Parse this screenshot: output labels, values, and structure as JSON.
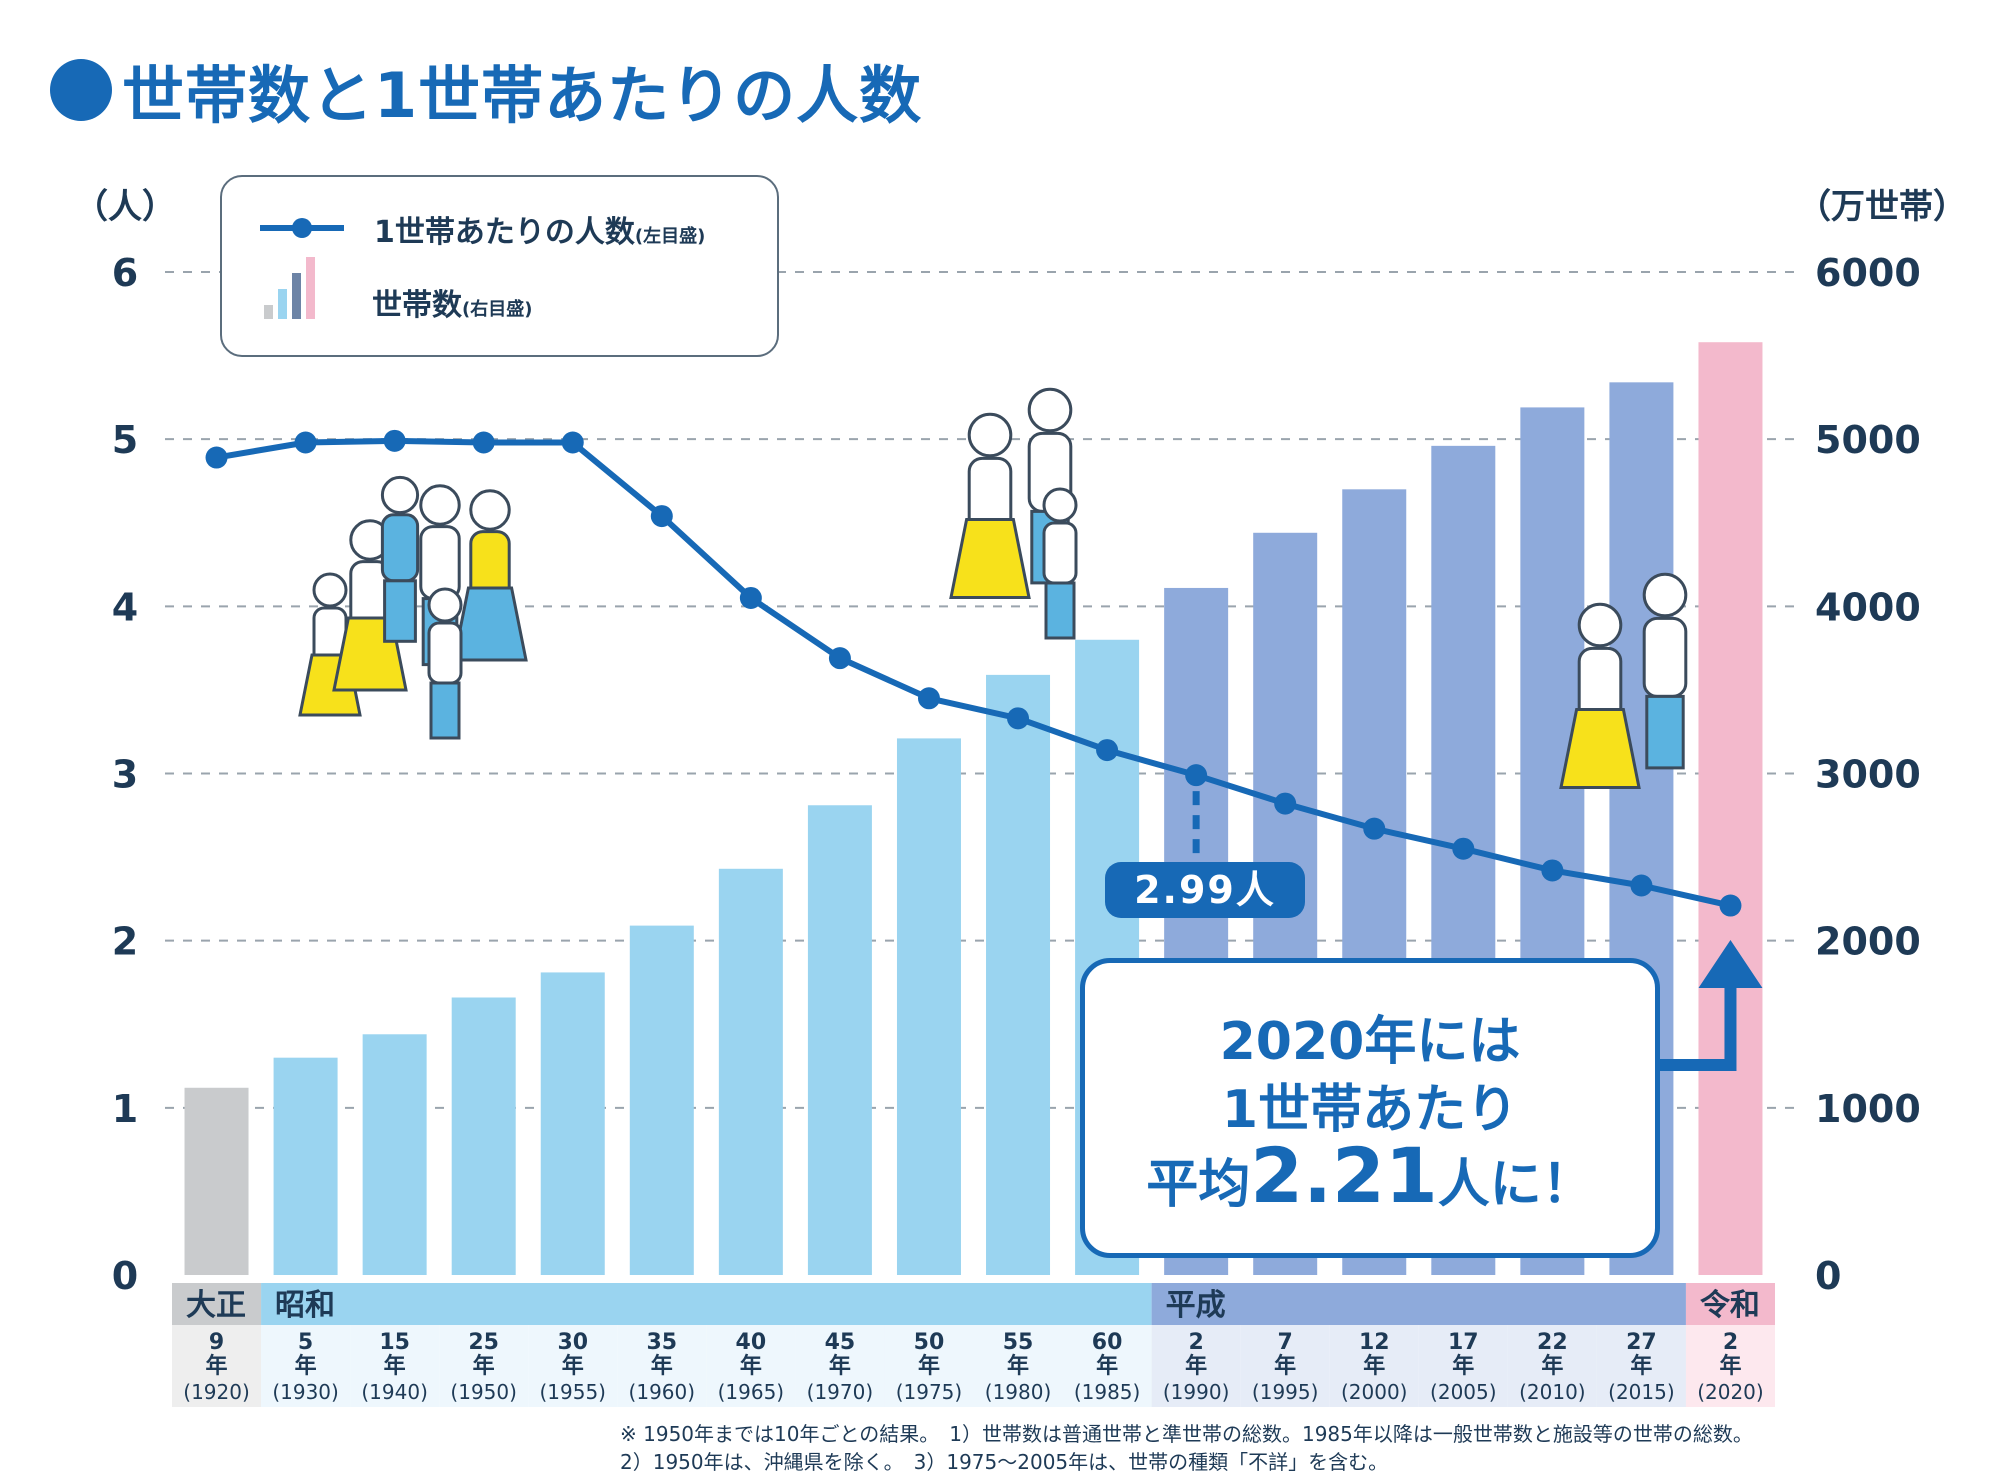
{
  "page": {
    "title": "世帯数と1世帯あたりの人数"
  },
  "legend": {
    "line_label": "1世帯あたりの人数",
    "line_note": "(左目盛)",
    "bar_label": "世帯数",
    "bar_note": "(右目盛)"
  },
  "axes": {
    "left_unit": "（人）",
    "right_unit": "（万世帯）"
  },
  "eras": [
    {
      "name": "大正",
      "from": 0,
      "to": 0,
      "color": "#c9cbcd"
    },
    {
      "name": "昭和",
      "from": 1,
      "to": 10,
      "color": "#9ad4f0"
    },
    {
      "name": "平成",
      "from": 11,
      "to": 16,
      "color": "#8eaadb"
    },
    {
      "name": "令和",
      "from": 17,
      "to": 17,
      "color": "#f3b9cc"
    }
  ],
  "callouts": {
    "small": "2.99人",
    "big_line1": "2020年には",
    "big_line2": "1世帯あたり",
    "big_line3_pre": "平均",
    "big_line3_num": "2.21",
    "big_line3_post": "人に！"
  },
  "notes": {
    "line1": "※ 1950年までは10年ごとの結果。　1）世帯数は普通世帯と準世帯の総数。1985年以降は一般世帯数と施設等の世帯の総数。",
    "line2": "2）1950年は、沖縄県を除く。　3）1975〜2005年は、世帯の種類「不詳」を含む。"
  },
  "colors": {
    "accent": "#1769b6",
    "taisho": "#c9cbcd",
    "showa": "#9ad4f0",
    "heisei": "#8eaadb",
    "reiwa": "#f3b9cc",
    "yellow": "#f7e11b"
  },
  "chart_data": {
    "type": "bar+line",
    "categories": [
      {
        "era_year": "9",
        "western": "(1920)"
      },
      {
        "era_year": "5",
        "western": "(1930)"
      },
      {
        "era_year": "15",
        "western": "(1940)"
      },
      {
        "era_year": "25",
        "western": "(1950)"
      },
      {
        "era_year": "30",
        "western": "(1955)"
      },
      {
        "era_year": "35",
        "western": "(1960)"
      },
      {
        "era_year": "40",
        "western": "(1965)"
      },
      {
        "era_year": "45",
        "western": "(1970)"
      },
      {
        "era_year": "50",
        "western": "(1975)"
      },
      {
        "era_year": "55",
        "western": "(1980)"
      },
      {
        "era_year": "60",
        "western": "(1985)"
      },
      {
        "era_year": "2",
        "western": "(1990)"
      },
      {
        "era_year": "7",
        "western": "(1995)"
      },
      {
        "era_year": "12",
        "western": "(2000)"
      },
      {
        "era_year": "17",
        "western": "(2005)"
      },
      {
        "era_year": "22",
        "western": "(2010)"
      },
      {
        "era_year": "27",
        "western": "(2015)"
      },
      {
        "era_year": "2",
        "western": "(2020)"
      }
    ],
    "year_suffix": "年",
    "series": [
      {
        "name": "世帯数",
        "kind": "bar",
        "axis": "right",
        "values": [
          1120,
          1300,
          1440,
          1660,
          1810,
          2090,
          2430,
          2810,
          3210,
          3590,
          3800,
          4110,
          4440,
          4700,
          4960,
          5190,
          5340,
          5580
        ]
      },
      {
        "name": "1世帯あたりの人数",
        "kind": "line",
        "axis": "left",
        "values": [
          4.89,
          4.98,
          4.99,
          4.98,
          4.98,
          4.54,
          4.05,
          3.69,
          3.45,
          3.33,
          3.14,
          2.99,
          2.82,
          2.67,
          2.55,
          2.42,
          2.33,
          2.21
        ]
      }
    ],
    "left_axis": {
      "ylim": [
        0,
        6
      ],
      "ticks": [
        "0",
        "1",
        "2",
        "3",
        "4",
        "5",
        "6"
      ]
    },
    "right_axis": {
      "ylim": [
        0,
        6000
      ],
      "ticks": [
        "0",
        "1000",
        "2000",
        "3000",
        "4000",
        "5000",
        "6000"
      ]
    },
    "grid": true
  }
}
